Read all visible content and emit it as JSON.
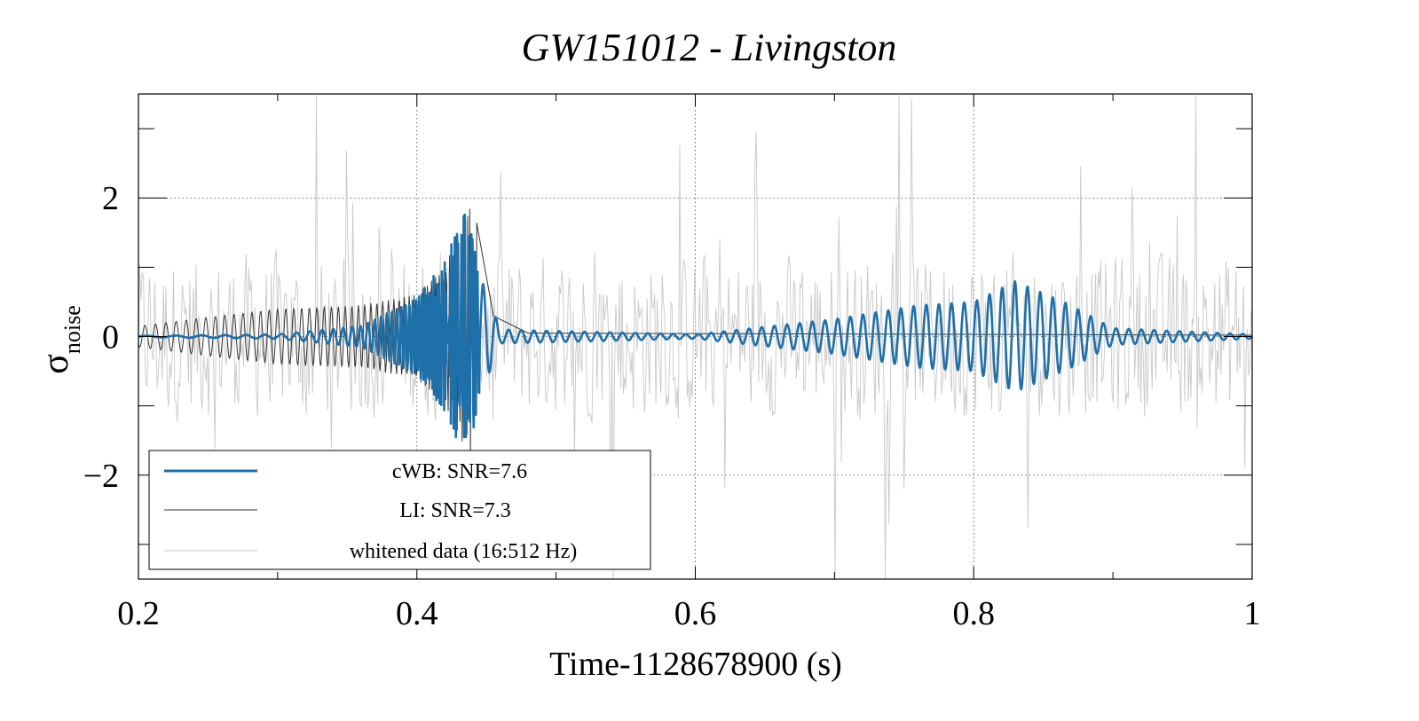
{
  "chart_data": {
    "type": "line",
    "title": "GW151012 - Livingston",
    "xlabel": "Time-1128678900 (s)",
    "ylabel": "σ",
    "ylabel_subscript": "noise",
    "xlim": [
      0.2,
      1.0
    ],
    "ylim": [
      -3.5,
      3.5
    ],
    "x_ticks": [
      0.2,
      0.4,
      0.6,
      0.8,
      1.0
    ],
    "x_tick_labels": [
      "0.2",
      "0.4",
      "0.6",
      "0.8",
      "1"
    ],
    "y_ticks": [
      -2,
      0,
      2
    ],
    "y_tick_labels": [
      "−2",
      "0",
      "2"
    ],
    "grid": true,
    "legend_position": "bottom-left",
    "series": [
      {
        "name": "cWB: SNR=7.6",
        "color": "#1f6fa8",
        "description": "Reconstructed waveform: chirp peaking near t=0.435 (≈2.0 / ≈-1.4) followed by a second oscillating packet around t=0.72–0.88 with amplitude up to ≈0.85",
        "envelope_points": [
          {
            "t": 0.2,
            "amp": 0.01
          },
          {
            "t": 0.3,
            "amp": 0.03
          },
          {
            "t": 0.36,
            "amp": 0.15
          },
          {
            "t": 0.4,
            "amp": 0.55
          },
          {
            "t": 0.42,
            "amp": 1.1
          },
          {
            "t": 0.435,
            "amp": 1.9
          },
          {
            "t": 0.445,
            "amp": 0.9
          },
          {
            "t": 0.46,
            "amp": 0.1
          },
          {
            "t": 0.6,
            "amp": 0.03
          },
          {
            "t": 0.7,
            "amp": 0.25
          },
          {
            "t": 0.76,
            "amp": 0.45
          },
          {
            "t": 0.8,
            "amp": 0.5
          },
          {
            "t": 0.83,
            "amp": 0.8
          },
          {
            "t": 0.87,
            "amp": 0.45
          },
          {
            "t": 0.9,
            "amp": 0.12
          },
          {
            "t": 1.0,
            "amp": 0.03
          }
        ]
      },
      {
        "name": "LI: SNR=7.3",
        "color": "#333333",
        "description": "LALInference waveform: chirp from t=0.2 growing to ≈2.0 near t=0.44, then ringdown to near zero",
        "envelope_points": [
          {
            "t": 0.2,
            "amp": 0.15
          },
          {
            "t": 0.25,
            "amp": 0.28
          },
          {
            "t": 0.3,
            "amp": 0.4
          },
          {
            "t": 0.36,
            "amp": 0.45
          },
          {
            "t": 0.4,
            "amp": 0.6
          },
          {
            "t": 0.42,
            "amp": 1.0
          },
          {
            "t": 0.44,
            "amp": 2.0
          },
          {
            "t": 0.455,
            "amp": 0.3
          },
          {
            "t": 0.48,
            "amp": 0.05
          },
          {
            "t": 1.0,
            "amp": 0.02
          }
        ]
      },
      {
        "name": "whitened data (16:512 Hz)",
        "color": "#c8c8c8",
        "description": "Whitened strain noise with peaks reaching about ±3.3 throughout 0.2–1.0 s"
      }
    ]
  }
}
